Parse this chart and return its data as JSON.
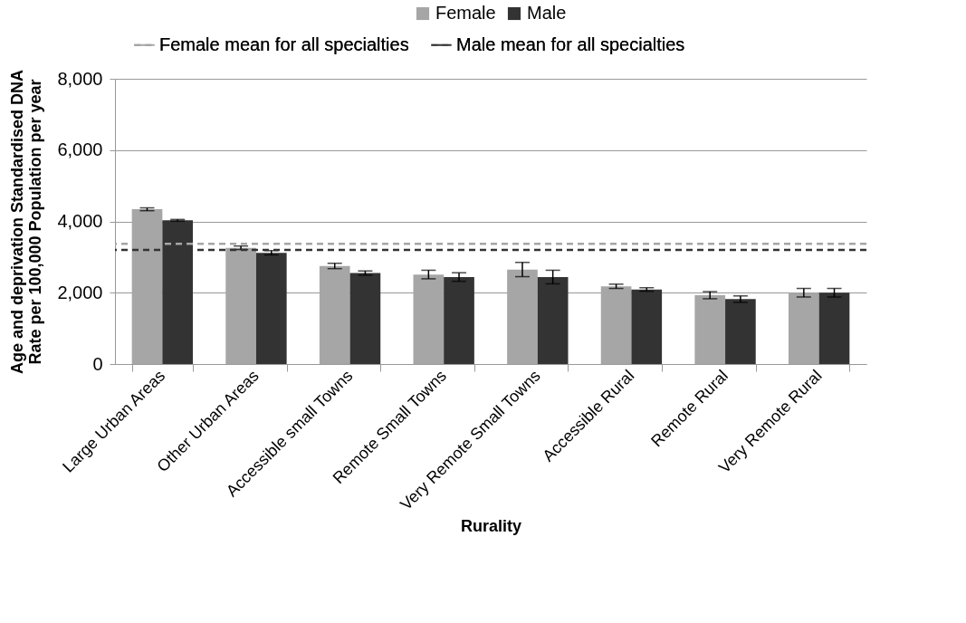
{
  "chart_data": {
    "type": "bar",
    "xlabel": "Rurality",
    "ylabel": "Age and deprivation Standardised DNA Rate per 100,000 Population per year",
    "categories": [
      "Large Urban Areas",
      "Other Urban Areas",
      "Accessible small Towns",
      "Remote Small Towns",
      "Very Remote Small Towns",
      "Accessible Rural",
      "Remote Rural",
      "Very Remote Rural"
    ],
    "series": [
      {
        "name": "Female",
        "color": "#a6a6a6",
        "values": [
          4340,
          3260,
          2750,
          2510,
          2650,
          2180,
          1930,
          2000
        ],
        "errors": [
          40,
          50,
          75,
          120,
          200,
          60,
          100,
          120
        ]
      },
      {
        "name": "Male",
        "color": "#333333",
        "values": [
          4030,
          3120,
          2550,
          2440,
          2440,
          2090,
          1820,
          2000
        ],
        "errors": [
          25,
          60,
          60,
          120,
          190,
          50,
          90,
          120
        ]
      }
    ],
    "ref_lines": [
      {
        "axis": "y",
        "value": 3370,
        "label": "Female mean for all specialties",
        "color": "#a6a6a6",
        "line_style": "dashed"
      },
      {
        "axis": "y",
        "value": 3200,
        "label": "Male mean for all specialties",
        "color": "#333333",
        "line_style": "dashed"
      }
    ],
    "ylim": [
      0,
      8000
    ],
    "yticks": [
      0,
      {
        "value": 2000,
        "label": "2,000"
      },
      {
        "value": 4000,
        "label": "4,000"
      },
      {
        "value": 6000,
        "label": "6,000"
      },
      {
        "value": 8000,
        "label": "8,000"
      }
    ],
    "grid": "y",
    "legend": "top"
  }
}
